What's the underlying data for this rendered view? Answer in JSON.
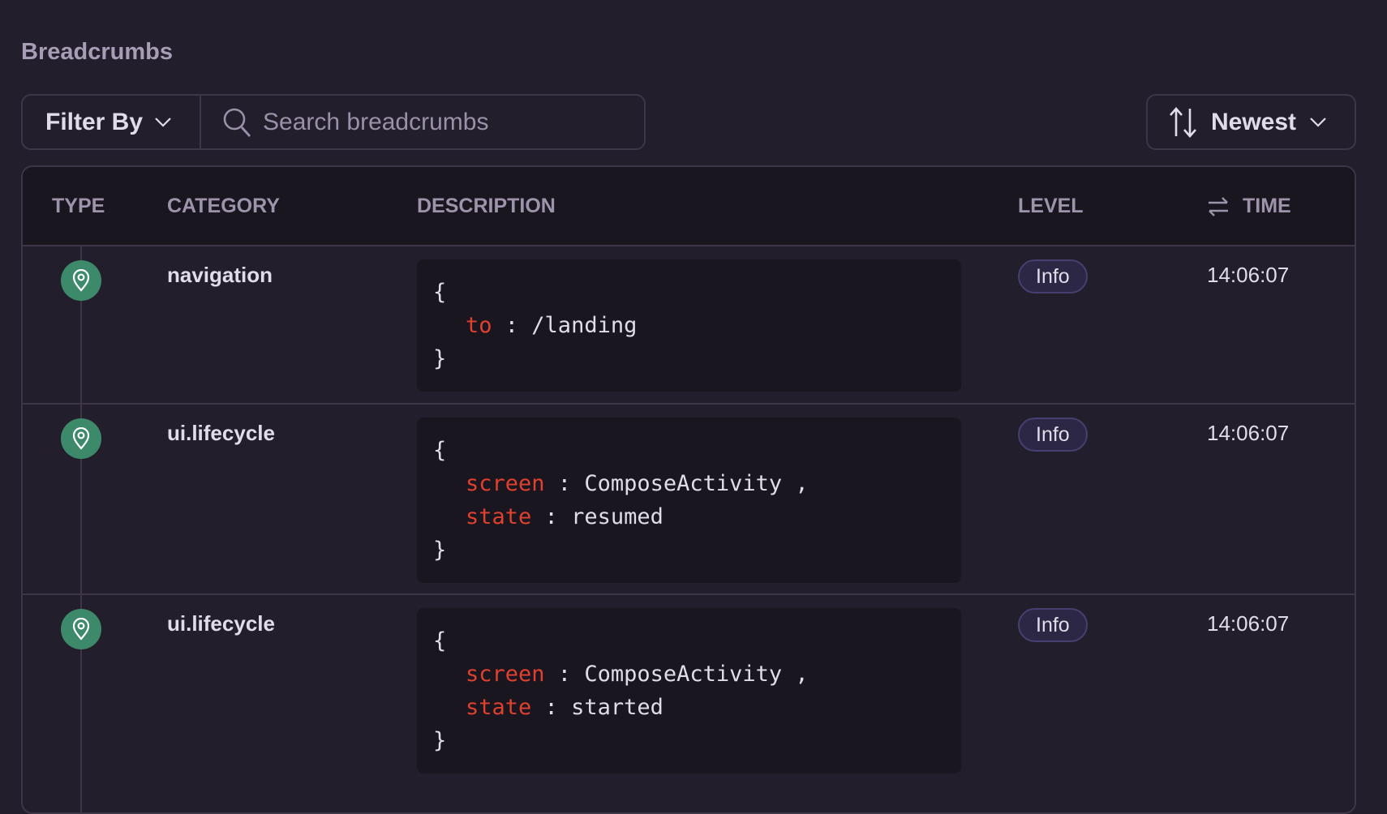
{
  "title": "Breadcrumbs",
  "filter": {
    "label": "Filter By",
    "search_placeholder": "Search breadcrumbs",
    "search_value": ""
  },
  "sort": {
    "label": "Newest"
  },
  "columns": {
    "type": "TYPE",
    "category": "CATEGORY",
    "description": "DESCRIPTION",
    "level": "LEVEL",
    "time": "TIME"
  },
  "colors": {
    "accent_green": "#3d8a6b",
    "key_red": "#e0412f",
    "background": "#231e2b"
  },
  "rows": [
    {
      "icon": "location-pin-icon",
      "category": "navigation",
      "fields": [
        {
          "key": "to",
          "value": "/landing"
        }
      ],
      "level": "Info",
      "time": "14:06:07"
    },
    {
      "icon": "location-pin-icon",
      "category": "ui.lifecycle",
      "fields": [
        {
          "key": "screen",
          "value": "ComposeActivity"
        },
        {
          "key": "state",
          "value": "resumed"
        }
      ],
      "level": "Info",
      "time": "14:06:07"
    },
    {
      "icon": "location-pin-icon",
      "category": "ui.lifecycle",
      "fields": [
        {
          "key": "screen",
          "value": "ComposeActivity"
        },
        {
          "key": "state",
          "value": "started"
        }
      ],
      "level": "Info",
      "time": "14:06:07"
    }
  ]
}
